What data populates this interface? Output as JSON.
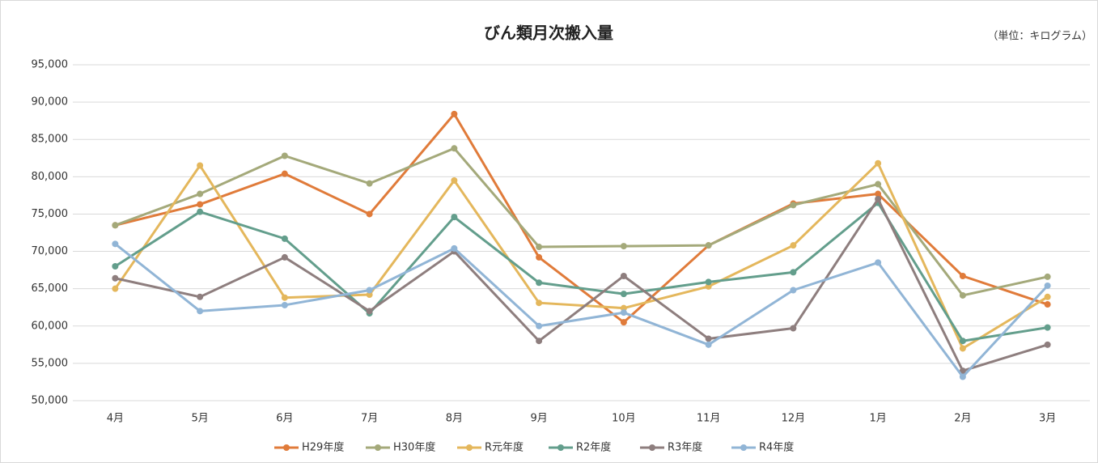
{
  "chart_data": {
    "type": "line",
    "title": "びん類月次搬入量",
    "subtitle": "（単位：キログラム）",
    "categories": [
      "4月",
      "5月",
      "6月",
      "7月",
      "8月",
      "9月",
      "10月",
      "11月",
      "12月",
      "1月",
      "2月",
      "3月"
    ],
    "series": [
      {
        "name": "H29年度",
        "color": "#e07b3a",
        "values": [
          73500,
          76300,
          80400,
          75000,
          88400,
          69200,
          60500,
          70800,
          76400,
          77700,
          66700,
          62900
        ]
      },
      {
        "name": "H30年度",
        "color": "#a4a97a",
        "values": [
          73500,
          77700,
          82800,
          79100,
          83800,
          70600,
          70700,
          70800,
          76200,
          79000,
          64100,
          66600
        ]
      },
      {
        "name": "R元年度",
        "color": "#e4b75c",
        "values": [
          65000,
          81500,
          63800,
          64200,
          79500,
          63100,
          62400,
          65300,
          70800,
          81800,
          57000,
          63900
        ]
      },
      {
        "name": "R2年度",
        "color": "#639e8c",
        "values": [
          68000,
          75300,
          71700,
          61700,
          74600,
          65800,
          64300,
          65900,
          67200,
          76500,
          58000,
          59800
        ]
      },
      {
        "name": "R3年度",
        "color": "#8e7e7e",
        "values": [
          66400,
          63900,
          69200,
          62000,
          70000,
          58000,
          66700,
          58300,
          59700,
          77000,
          54000,
          57500
        ]
      },
      {
        "name": "R4年度",
        "color": "#91b5d6",
        "values": [
          71000,
          62000,
          62800,
          64800,
          70400,
          60000,
          61800,
          57500,
          64800,
          68500,
          53200,
          65400
        ]
      }
    ],
    "ylim": [
      50000,
      95000
    ],
    "yticks": [
      {
        "value": 50000,
        "label": "50,000"
      },
      {
        "value": 55000,
        "label": "55,000"
      },
      {
        "value": 60000,
        "label": "60,000"
      },
      {
        "value": 65000,
        "label": "65,000"
      },
      {
        "value": 70000,
        "label": "70,000"
      },
      {
        "value": 75000,
        "label": "75,000"
      },
      {
        "value": 80000,
        "label": "80,000"
      },
      {
        "value": 85000,
        "label": "85,000"
      },
      {
        "value": 90000,
        "label": "90,000"
      },
      {
        "value": 95000,
        "label": "95,000"
      }
    ],
    "grid": true,
    "legend": "bottom"
  }
}
